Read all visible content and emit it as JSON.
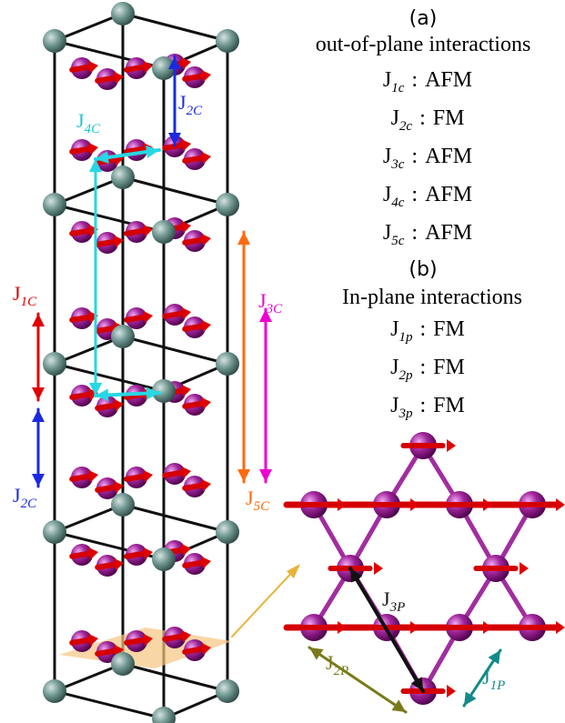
{
  "panel_a": {
    "label": "(a)",
    "title": "out-of-plane interactions",
    "interactions": [
      {
        "symbol": "J",
        "subscript": "1c",
        "separator": ":",
        "type": "AFM"
      },
      {
        "symbol": "J",
        "subscript": "2c",
        "separator": ":",
        "type": "FM"
      },
      {
        "symbol": "J",
        "subscript": "3c",
        "separator": ":",
        "type": "AFM"
      },
      {
        "symbol": "J",
        "subscript": "4c",
        "separator": ":",
        "type": "AFM"
      },
      {
        "symbol": "J",
        "subscript": "5c",
        "separator": ":",
        "type": "AFM"
      }
    ]
  },
  "panel_b": {
    "label": "(b)",
    "title": "In-plane interactions",
    "interactions": [
      {
        "symbol": "J",
        "subscript": "1p",
        "separator": ":",
        "type": "FM"
      },
      {
        "symbol": "J",
        "subscript": "2p",
        "separator": ":",
        "type": "FM"
      },
      {
        "symbol": "J",
        "subscript": "3p",
        "separator": ":",
        "type": "FM"
      }
    ]
  },
  "figure_labels": [
    {
      "symbol": "J",
      "subscript": "4C"
    },
    {
      "symbol": "J",
      "subscript": "2C"
    },
    {
      "symbol": "J",
      "subscript": "1C"
    },
    {
      "symbol": "J",
      "subscript": "2C"
    },
    {
      "symbol": "J",
      "subscript": "3C"
    },
    {
      "symbol": "J",
      "subscript": "5C"
    },
    {
      "symbol": "J",
      "subscript": "3P"
    },
    {
      "symbol": "J",
      "subscript": "2P"
    },
    {
      "symbol": "J",
      "subscript": "1P"
    }
  ]
}
